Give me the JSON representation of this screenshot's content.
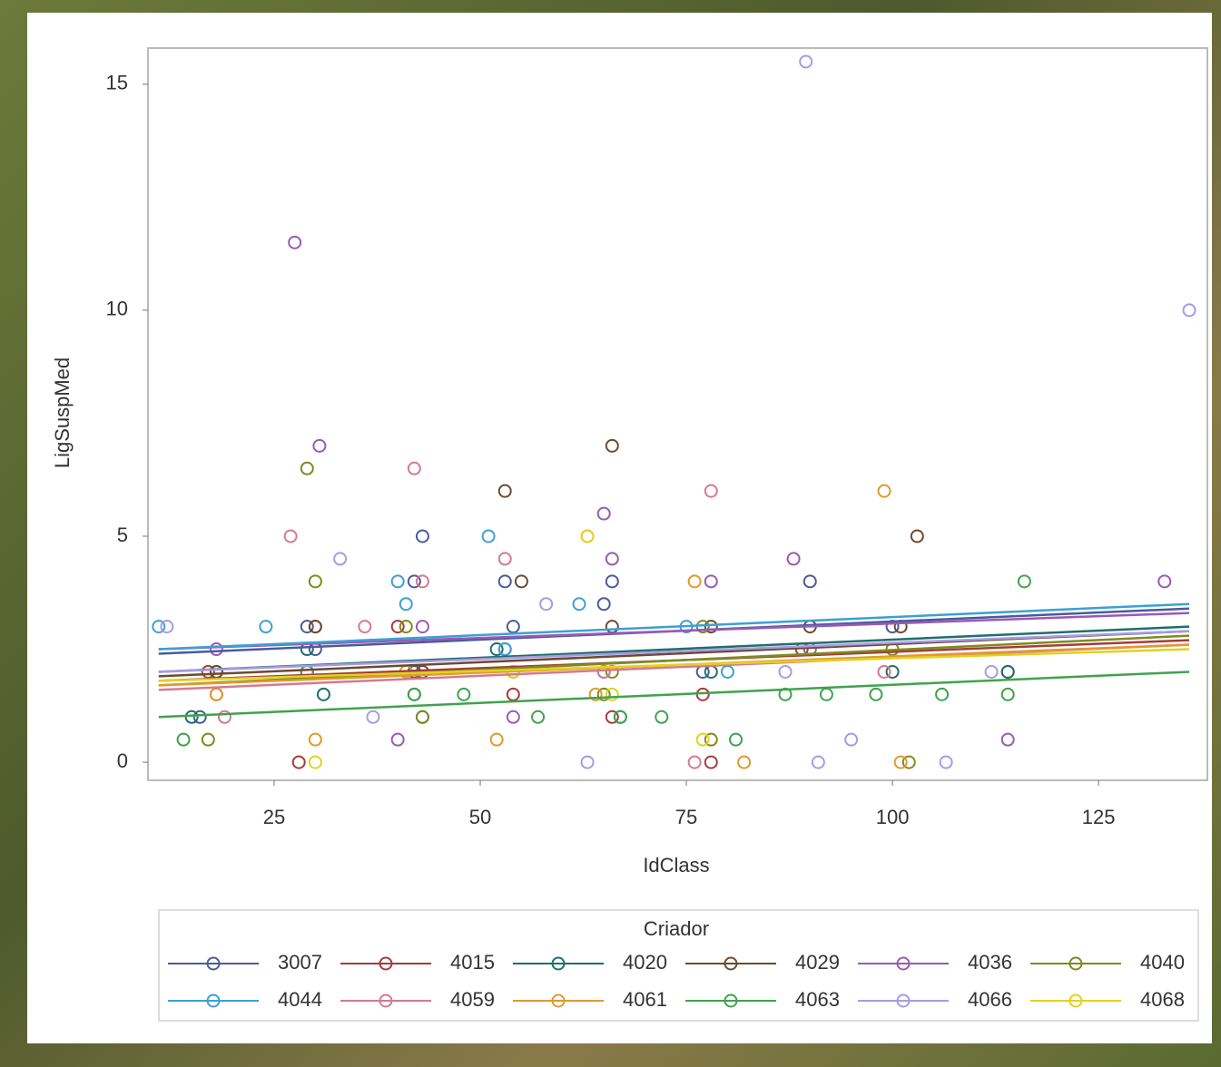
{
  "chart_data": {
    "type": "scatter",
    "x_label": "IdClass",
    "y_label": "LigSuspMed",
    "legend_title": "Criador",
    "xlim": [
      9.7,
      138.2
    ],
    "ylim": [
      -0.4,
      15.8
    ],
    "xticks": [
      25,
      50,
      75,
      100,
      125
    ],
    "yticks": [
      0,
      5,
      10,
      15
    ],
    "fit_x": [
      11,
      136
    ],
    "series": [
      {
        "name": "3007",
        "color": "#4a5a9a",
        "x": [
          16,
          18,
          29,
          30,
          42,
          43,
          53,
          54,
          65,
          66,
          77,
          90,
          100,
          114
        ],
        "values": [
          1,
          2,
          3,
          2.5,
          4,
          5,
          4,
          3,
          3.5,
          4,
          2,
          4,
          3,
          2
        ],
        "fit_values": [
          2.4,
          3.4
        ]
      },
      {
        "name": "4015",
        "color": "#a83a3a",
        "x": [
          17,
          18,
          28,
          30,
          40,
          42,
          53,
          54,
          66,
          77,
          78,
          89
        ],
        "values": [
          2,
          1.5,
          0,
          3,
          3,
          2,
          2.5,
          1.5,
          1,
          1.5,
          0,
          2.5
        ],
        "fit_values": [
          1.8,
          2.7
        ]
      },
      {
        "name": "4020",
        "color": "#1f6e6e",
        "x": [
          15,
          29,
          31,
          42,
          43,
          52,
          54,
          65,
          67,
          78,
          100,
          114
        ],
        "values": [
          1,
          2.5,
          1.5,
          2,
          1,
          2.5,
          2,
          2,
          1,
          2,
          2,
          2
        ],
        "fit_values": [
          2.0,
          3.0
        ]
      },
      {
        "name": "4029",
        "color": "#6e4a2e",
        "x": [
          18,
          29,
          30,
          42,
          43,
          53,
          55,
          66,
          66,
          78,
          90,
          101,
          103
        ],
        "values": [
          2,
          2,
          3,
          1.5,
          2,
          6,
          4,
          7,
          3,
          3,
          3,
          3,
          5
        ],
        "fit_values": [
          1.9,
          2.9
        ]
      },
      {
        "name": "4036",
        "color": "#9b59b6",
        "x": [
          18,
          27.5,
          30.5,
          40,
          43,
          54,
          65,
          66,
          78,
          88,
          90,
          114,
          133
        ],
        "values": [
          2.5,
          11.5,
          7,
          0.5,
          3,
          1,
          5.5,
          4.5,
          4,
          4.5,
          2.5,
          0.5,
          4
        ],
        "fit_values": [
          2.5,
          3.3
        ]
      },
      {
        "name": "4040",
        "color": "#7d8b1e",
        "x": [
          17,
          29,
          30,
          41,
          43,
          54,
          65,
          66,
          77,
          78,
          100,
          102
        ],
        "values": [
          0.5,
          6.5,
          4,
          3,
          1,
          2,
          1.5,
          2,
          3,
          0.5,
          2.5,
          0
        ],
        "fit_values": [
          1.7,
          2.8
        ]
      },
      {
        "name": "4044",
        "color": "#3ba0d5",
        "x": [
          11,
          24,
          40,
          41,
          51,
          53,
          62,
          75,
          80
        ],
        "values": [
          3,
          3,
          4,
          3.5,
          5,
          2.5,
          3.5,
          3,
          2
        ],
        "fit_values": [
          2.5,
          3.5
        ]
      },
      {
        "name": "4059",
        "color": "#d47a90",
        "x": [
          19,
          27,
          36,
          42,
          43,
          53,
          65,
          76,
          78,
          99
        ],
        "values": [
          1,
          5,
          3,
          6.5,
          4,
          4.5,
          2,
          0,
          6,
          2
        ],
        "fit_values": [
          1.6,
          2.6
        ]
      },
      {
        "name": "4061",
        "color": "#e09a2e",
        "x": [
          18,
          30,
          41,
          52,
          63,
          64,
          76,
          82,
          99,
          101
        ],
        "values": [
          1.5,
          0.5,
          2,
          0.5,
          5,
          1.5,
          4,
          0,
          6,
          0
        ],
        "fit_values": [
          1.7,
          2.6
        ]
      },
      {
        "name": "4063",
        "color": "#3fa34d",
        "x": [
          14,
          29,
          42,
          48,
          57,
          67,
          72,
          81,
          87,
          92,
          98,
          106,
          114,
          116
        ],
        "values": [
          0.5,
          2,
          1.5,
          1.5,
          1,
          1,
          1,
          0.5,
          1.5,
          1.5,
          1.5,
          1.5,
          1.5,
          4
        ],
        "fit_values": [
          1.0,
          2.0
        ]
      },
      {
        "name": "4066",
        "color": "#a89ae6",
        "x": [
          12,
          33,
          37,
          58,
          63,
          87,
          89.5,
          91,
          95,
          106.5,
          112,
          136
        ],
        "values": [
          3,
          4.5,
          1,
          3.5,
          0,
          2,
          15.5,
          0,
          0.5,
          0,
          2,
          10
        ],
        "fit_values": [
          2.0,
          2.9
        ]
      },
      {
        "name": "4068",
        "color": "#e3d21f",
        "x": [
          30,
          54,
          63,
          66,
          77
        ],
        "values": [
          0,
          2,
          5,
          1.5,
          0.5
        ],
        "fit_values": [
          1.8,
          2.5
        ]
      }
    ]
  }
}
